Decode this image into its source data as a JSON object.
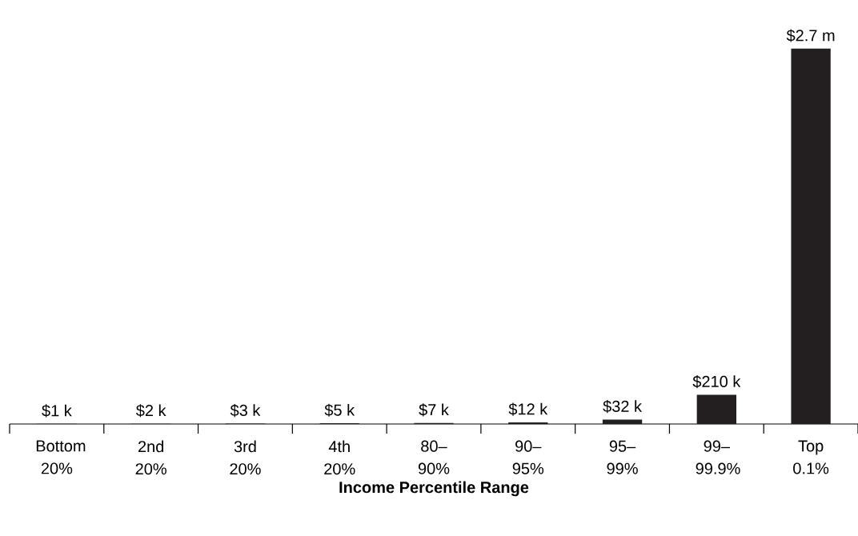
{
  "chart_data": {
    "type": "bar",
    "xlabel": "Income Percentile Range",
    "categories": [
      "Bottom 20%",
      "2nd 20%",
      "3rd 20%",
      "4th 20%",
      "80–90%",
      "90–95%",
      "95–99%",
      "99–99.9%",
      "Top 0.1%"
    ],
    "values": [
      1000,
      2000,
      3000,
      5000,
      7000,
      12000,
      32000,
      210000,
      2700000
    ],
    "value_labels": [
      "$1 k",
      "$2 k",
      "$3 k",
      "$5 k",
      "$7 k",
      "$12 k",
      "$32 k",
      "$210 k",
      "$2.7 m"
    ],
    "color": "#231f20"
  }
}
